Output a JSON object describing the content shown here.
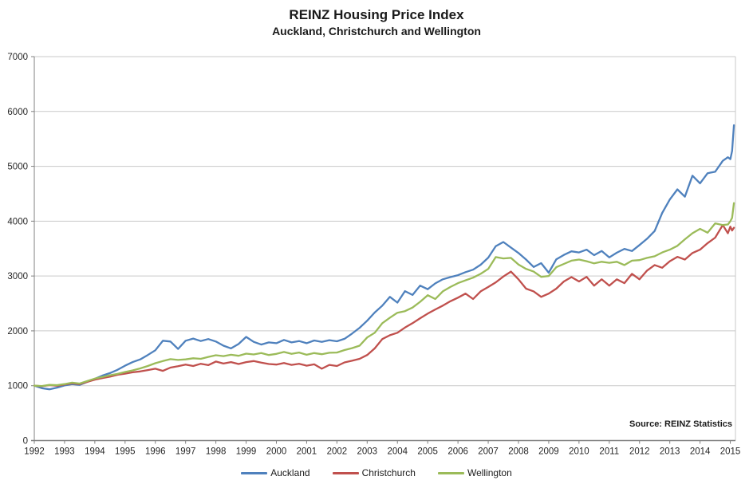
{
  "header": {
    "title": "REINZ Housing Price Index",
    "subtitle": "Auckland, Christchurch and Wellington"
  },
  "source_note": "Source: REINZ Statistics",
  "chart_data": {
    "type": "line",
    "title": "REINZ Housing Price Index",
    "subtitle": "Auckland, Christchurch and Wellington",
    "source": "Source: REINZ Statistics",
    "xlabel": "",
    "ylabel": "",
    "xlim": [
      1992,
      2015.17
    ],
    "ylim": [
      0,
      7000
    ],
    "y_tick_step": 1000,
    "y_ticks": [
      0,
      1000,
      2000,
      3000,
      4000,
      5000,
      6000,
      7000
    ],
    "x_ticks": [
      1992,
      1993,
      1994,
      1995,
      1996,
      1997,
      1998,
      1999,
      2000,
      2001,
      2002,
      2003,
      2004,
      2005,
      2006,
      2007,
      2008,
      2009,
      2010,
      2011,
      2012,
      2013,
      2014,
      2015
    ],
    "grid": "horizontal",
    "legend_position": "bottom",
    "grid_color": "#C9C9C9",
    "axis_color": "#808080",
    "text_color": "#262626",
    "x": [
      1992,
      1992.25,
      1992.5,
      1992.75,
      1993,
      1993.25,
      1993.5,
      1993.75,
      1994,
      1994.25,
      1994.5,
      1994.75,
      1995,
      1995.25,
      1995.5,
      1995.75,
      1996,
      1996.25,
      1996.5,
      1996.75,
      1997,
      1997.25,
      1997.5,
      1997.75,
      1998,
      1998.25,
      1998.5,
      1998.75,
      1999,
      1999.25,
      1999.5,
      1999.75,
      2000,
      2000.25,
      2000.5,
      2000.75,
      2001,
      2001.25,
      2001.5,
      2001.75,
      2002,
      2002.25,
      2002.5,
      2002.75,
      2003,
      2003.25,
      2003.5,
      2003.75,
      2004,
      2004.25,
      2004.5,
      2004.75,
      2005,
      2005.25,
      2005.5,
      2005.75,
      2006,
      2006.25,
      2006.5,
      2006.75,
      2007,
      2007.25,
      2007.5,
      2007.75,
      2008,
      2008.25,
      2008.5,
      2008.75,
      2009,
      2009.25,
      2009.5,
      2009.75,
      2010,
      2010.25,
      2010.5,
      2010.75,
      2011,
      2011.25,
      2011.5,
      2011.75,
      2012,
      2012.25,
      2012.5,
      2012.75,
      2013,
      2013.25,
      2013.5,
      2013.75,
      2014,
      2014.25,
      2014.5,
      2014.75,
      2014.92,
      2015,
      2015.06,
      2015.12
    ],
    "series": [
      {
        "name": "Auckland",
        "color": "#4F81BD",
        "values": [
          1000,
          955,
          935,
          965,
          1005,
          1030,
          1015,
          1070,
          1125,
          1185,
          1230,
          1290,
          1365,
          1430,
          1480,
          1560,
          1645,
          1820,
          1805,
          1670,
          1820,
          1860,
          1815,
          1850,
          1805,
          1730,
          1680,
          1760,
          1890,
          1800,
          1750,
          1790,
          1775,
          1835,
          1790,
          1815,
          1775,
          1825,
          1800,
          1830,
          1810,
          1855,
          1950,
          2055,
          2185,
          2335,
          2460,
          2620,
          2515,
          2725,
          2655,
          2825,
          2760,
          2865,
          2940,
          2980,
          3015,
          3070,
          3115,
          3205,
          3335,
          3545,
          3620,
          3520,
          3420,
          3300,
          3165,
          3235,
          3060,
          3305,
          3385,
          3450,
          3430,
          3480,
          3380,
          3455,
          3340,
          3425,
          3495,
          3455,
          3565,
          3680,
          3820,
          4150,
          4395,
          4580,
          4445,
          4830,
          4690,
          4875,
          4900,
          5100,
          5165,
          5130,
          5280,
          5750
        ]
      },
      {
        "name": "Christchurch",
        "color": "#C0504D",
        "values": [
          1000,
          990,
          1010,
          1000,
          1020,
          1045,
          1030,
          1070,
          1110,
          1140,
          1165,
          1200,
          1220,
          1245,
          1260,
          1285,
          1310,
          1270,
          1330,
          1355,
          1385,
          1360,
          1400,
          1375,
          1440,
          1405,
          1430,
          1395,
          1430,
          1450,
          1420,
          1395,
          1385,
          1415,
          1380,
          1400,
          1365,
          1390,
          1310,
          1380,
          1360,
          1425,
          1455,
          1490,
          1560,
          1680,
          1850,
          1920,
          1965,
          2060,
          2140,
          2230,
          2315,
          2390,
          2460,
          2540,
          2605,
          2680,
          2580,
          2720,
          2800,
          2885,
          2990,
          3080,
          2940,
          2770,
          2720,
          2620,
          2680,
          2770,
          2900,
          2980,
          2900,
          2985,
          2825,
          2940,
          2825,
          2940,
          2870,
          3040,
          2940,
          3100,
          3200,
          3150,
          3270,
          3350,
          3300,
          3420,
          3480,
          3600,
          3700,
          3930,
          3780,
          3900,
          3830,
          3880
        ]
      },
      {
        "name": "Wellington",
        "color": "#9BBB59",
        "values": [
          1000,
          995,
          1015,
          1010,
          1030,
          1055,
          1040,
          1085,
          1130,
          1160,
          1190,
          1215,
          1250,
          1280,
          1315,
          1360,
          1410,
          1450,
          1485,
          1470,
          1480,
          1500,
          1490,
          1525,
          1555,
          1540,
          1565,
          1545,
          1585,
          1570,
          1595,
          1560,
          1580,
          1615,
          1580,
          1605,
          1565,
          1595,
          1575,
          1600,
          1605,
          1650,
          1685,
          1730,
          1880,
          1965,
          2140,
          2240,
          2330,
          2360,
          2425,
          2530,
          2650,
          2580,
          2720,
          2800,
          2870,
          2920,
          2970,
          3040,
          3130,
          3345,
          3320,
          3330,
          3210,
          3130,
          3080,
          2985,
          3000,
          3160,
          3220,
          3280,
          3300,
          3270,
          3230,
          3260,
          3240,
          3260,
          3200,
          3280,
          3290,
          3330,
          3360,
          3430,
          3480,
          3550,
          3670,
          3780,
          3860,
          3790,
          3960,
          3930,
          3940,
          4000,
          4060,
          4330
        ]
      }
    ]
  }
}
